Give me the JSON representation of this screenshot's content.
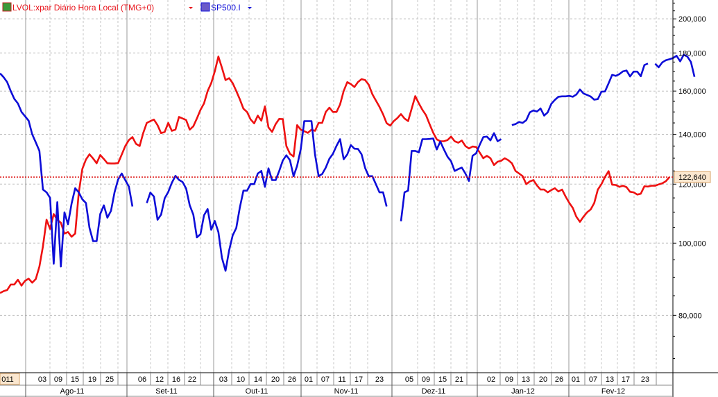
{
  "legend": [
    {
      "label": "LVOL:xpar Diário Hora Local (TMG+0)",
      "color": "#e8141b",
      "icon": "chart-icon",
      "menu_icon": "dropdown-arrow-icon"
    },
    {
      "label": "SP500.I",
      "color": "#1010d8",
      "icon": "chart-icon",
      "menu_icon": "dropdown-arrow-icon"
    }
  ],
  "colors": {
    "series_red": "#ee1111",
    "series_blue": "#0d0dd8",
    "grid": "#bdbdbd",
    "last_price_bg": "#fbe7cf",
    "last_price_text": "#c0392b"
  },
  "chart_data": {
    "type": "line",
    "y_scale": "log",
    "ylim": [
      67000,
      212000
    ],
    "y_ticks": [
      {
        "value": 80000,
        "label": "80,000"
      },
      {
        "value": 100000,
        "label": "100,000"
      },
      {
        "value": 120000,
        "label": "120,000"
      },
      {
        "value": 140000,
        "label": "140,000"
      },
      {
        "value": 160000,
        "label": "160,000"
      },
      {
        "value": 180000,
        "label": "180,000"
      },
      {
        "value": 200000,
        "label": "200,000"
      }
    ],
    "last_price": {
      "value": 122640,
      "label": "122,640"
    },
    "x_day_labels": [
      "011",
      "03",
      "09",
      "15",
      "19",
      "25",
      "06",
      "12",
      "16",
      "22",
      "03",
      "10",
      "14",
      "20",
      "26",
      "01",
      "07",
      "11",
      "17",
      "23",
      "05",
      "09",
      "15",
      "21",
      "02",
      "09",
      "13",
      "20",
      "26",
      "01",
      "07",
      "13",
      "17",
      "23"
    ],
    "x_month_labels": [
      "Ago-11",
      "Set-11",
      "Out-11",
      "Nov-11",
      "Dez-11",
      "Jan-12",
      "Fev-12"
    ],
    "series": [
      {
        "name": "LVOL:xpar Diário Hora Local (TMG+0)",
        "color": "#ee1111",
        "values": [
          85700,
          86200,
          86500,
          88000,
          88000,
          89300,
          87700,
          89000,
          89600,
          88500,
          89500,
          93000,
          99000,
          107500,
          104500,
          109400,
          107500,
          106500,
          103000,
          103500,
          102000,
          103000,
          116800,
          125800,
          129500,
          131600,
          129900,
          128000,
          131300,
          129700,
          128000,
          127900,
          127900,
          128100,
          131500,
          135000,
          137500,
          138800,
          135900,
          135000,
          140500,
          145000,
          145800,
          146500,
          144000,
          140500,
          141000,
          145000,
          141500,
          142000,
          147700,
          147000,
          146300,
          142000,
          143500,
          147000,
          151000,
          154000,
          160000,
          164000,
          170000,
          178000,
          172000,
          165500,
          166500,
          164000,
          160000,
          156000,
          151500,
          150000,
          146600,
          144800,
          148300,
          146000,
          152600,
          143000,
          141000,
          144500,
          146800,
          146700,
          135000,
          131800,
          130700,
          144000,
          142000,
          141300,
          140600,
          142000,
          141500,
          145000,
          145000,
          150000,
          152000,
          150000,
          150000,
          153500,
          160000,
          164500,
          163500,
          162000,
          164500,
          166000,
          165500,
          163200,
          158500,
          155400,
          152400,
          148900,
          144900,
          143800,
          145800,
          147200,
          149000,
          147000,
          145800,
          151500,
          157500,
          154000,
          151000,
          148500,
          144400,
          140700,
          137800,
          137000,
          137000,
          137500,
          139000,
          137000,
          136400,
          137300,
          135000,
          134000,
          134800,
          134600,
          132300,
          130000,
          131000,
          130000,
          127300,
          128600,
          129000,
          130000,
          129200,
          128000,
          125000,
          124000,
          123000,
          120000,
          121000,
          121500,
          119500,
          118000,
          118000,
          117000,
          117800,
          118500,
          117300,
          118000,
          115500,
          113300,
          111500,
          108500,
          106800,
          108500,
          110000,
          111000,
          113200,
          118000,
          120000,
          122700,
          124900,
          119800,
          119700,
          119000,
          119400,
          118900,
          117200,
          117000,
          116200,
          116500,
          119200,
          119100,
          119400,
          119400,
          119900,
          120300,
          121100,
          122640
        ]
      },
      {
        "name": "SP500.I",
        "color": "#0d0dd8",
        "values": [
          169000,
          167000,
          164500,
          160000,
          156200,
          154000,
          150000,
          148000,
          146000,
          140000,
          136500,
          133000,
          118000,
          117000,
          115000,
          93800,
          113500,
          93000,
          110000,
          106000,
          113000,
          118500,
          117000,
          114500,
          113200,
          104800,
          100600,
          100600,
          109400,
          112400,
          108200,
          110500,
          117000,
          121800,
          124000,
          121500,
          119100,
          112000,
          null,
          null,
          null,
          113200,
          116900,
          115500,
          107500,
          109200,
          114900,
          117100,
          120500,
          123100,
          121600,
          120800,
          118400,
          112400,
          109200,
          101800,
          102800,
          109000,
          111100,
          104200,
          107100,
          103500,
          95600,
          91800,
          97800,
          102400,
          104800,
          111600,
          117600,
          117600,
          120000,
          120000,
          124000,
          125000,
          119000,
          126000,
          121500,
          121500,
          125000,
          129100,
          131200,
          129200,
          123000,
          127000,
          133600,
          145800,
          145800,
          145800,
          131500,
          123000,
          123800,
          126300,
          129800,
          131800,
          135100,
          137900,
          129600,
          131500,
          135400,
          133900,
          133800,
          131600,
          126100,
          123000,
          123000,
          120000,
          117000,
          117000,
          112000,
          null,
          null,
          null,
          107000,
          117000,
          117600,
          133000,
          133000,
          132400,
          137900,
          137900,
          138000,
          138200,
          133600,
          136900,
          133600,
          130600,
          128800,
          125000,
          125700,
          126300,
          124000,
          121200,
          131000,
          132000,
          135500,
          138800,
          139000,
          137400,
          140500,
          137000,
          137900,
          null,
          null,
          144000,
          144500,
          145400,
          145000,
          146200,
          149800,
          150700,
          150200,
          151600,
          148300,
          149800,
          153800,
          155700,
          157200,
          157400,
          157400,
          157600,
          157200,
          158300,
          160800,
          158800,
          158100,
          157300,
          155800,
          156100,
          159700,
          159800,
          163900,
          168200,
          167700,
          168600,
          170000,
          170500,
          167400,
          169900,
          169900,
          167500,
          173400,
          174200,
          null,
          174100,
          172200,
          174800,
          176000,
          176500,
          177200,
          178400,
          175400,
          179000,
          178000,
          175000,
          167200
        ]
      }
    ]
  }
}
